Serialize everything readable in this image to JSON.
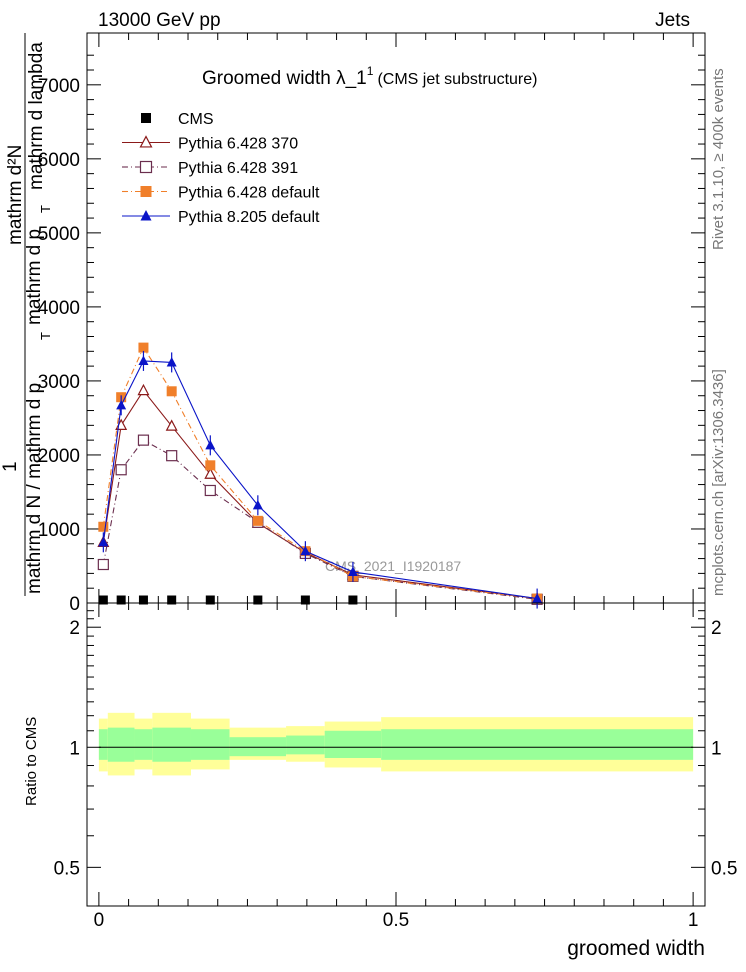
{
  "header": {
    "left": "13000 GeV pp",
    "right": "Jets",
    "side_top": "Rivet 3.1.10, ≥ 400k events",
    "side_bottom": "mcplots.cern.ch [arXiv:1306.3436]"
  },
  "chart_data": [
    {
      "type": "line",
      "title": "Groomed width  λ_1",
      "title_sup": "1",
      "title_suffix": "(CMS jet substructure)",
      "watermark": "CMS_2021_I1920187",
      "ylabel_parts": [
        "mathrm d²N",
        "mathrm d p",
        "mathrm d lambda",
        "1",
        "mathrm d N / mathrm d p",
        "T",
        "T"
      ],
      "ytick_labels": [
        "0",
        "1000",
        "2000",
        "3000",
        "4000",
        "5000",
        "6000",
        "7000"
      ],
      "ytick_values": [
        0,
        1000,
        2000,
        3000,
        4000,
        5000,
        6000,
        7000
      ],
      "ylim": [
        0,
        7700
      ],
      "xlim": [
        -0.02,
        1.02
      ],
      "grid": false,
      "legend_position": "top-left",
      "x": [
        0.0075,
        0.0375,
        0.075,
        0.1225,
        0.1875,
        0.2675,
        0.3475,
        0.4275,
        0.7375
      ],
      "series": [
        {
          "name": "CMS",
          "color": "#000000",
          "marker": "square-filled",
          "values": [
            8,
            8,
            8,
            8,
            8,
            4,
            3,
            2,
            1
          ]
        },
        {
          "name": "Pythia 6.428 370",
          "color": "#8b1a1a",
          "marker": "triangle-open",
          "dash": "solid",
          "values": [
            820,
            2400,
            2870,
            2390,
            1740,
            1080,
            680,
            380,
            60
          ]
        },
        {
          "name": "Pythia 6.428 391",
          "color": "#6b2e4e",
          "marker": "square-open",
          "dash": "dashdot",
          "values": [
            520,
            1800,
            2200,
            1990,
            1520,
            1090,
            670,
            360,
            50
          ]
        },
        {
          "name": "Pythia 6.428 default",
          "color": "#f07f2a",
          "marker": "square-filled",
          "dash": "dashdot",
          "values": [
            1030,
            2780,
            3450,
            2860,
            1860,
            1110,
            700,
            360,
            60
          ]
        },
        {
          "name": "Pythia 8.205 default",
          "color": "#0a14c8",
          "marker": "triangle-filled",
          "dash": "solid",
          "values": [
            820,
            2670,
            3270,
            3250,
            2130,
            1320,
            700,
            420,
            60
          ]
        }
      ]
    },
    {
      "type": "area",
      "ylabel": "Ratio to CMS",
      "xlabel": "groomed width",
      "xtick_labels": [
        "0",
        "0.5",
        "1"
      ],
      "xtick_values": [
        0,
        0.5,
        1
      ],
      "ytick_labels": [
        "0.5",
        "1",
        "2"
      ],
      "ytick_values": [
        0.5,
        1,
        2
      ],
      "ylim": [
        0.4,
        2.3
      ],
      "yscale": "log",
      "bins": [
        0,
        0.015,
        0.06,
        0.09,
        0.155,
        0.22,
        0.315,
        0.38,
        0.475,
        1.0
      ],
      "band_yellow": [
        [
          0.87,
          1.18
        ],
        [
          0.85,
          1.22
        ],
        [
          0.88,
          1.18
        ],
        [
          0.85,
          1.22
        ],
        [
          0.88,
          1.18
        ],
        [
          0.93,
          1.12
        ],
        [
          0.92,
          1.13
        ],
        [
          0.89,
          1.16
        ],
        [
          0.87,
          1.19
        ]
      ],
      "band_green": [
        [
          0.93,
          1.11
        ],
        [
          0.92,
          1.12
        ],
        [
          0.93,
          1.11
        ],
        [
          0.92,
          1.12
        ],
        [
          0.93,
          1.11
        ],
        [
          0.95,
          1.06
        ],
        [
          0.96,
          1.07
        ],
        [
          0.94,
          1.1
        ],
        [
          0.93,
          1.11
        ]
      ]
    }
  ]
}
